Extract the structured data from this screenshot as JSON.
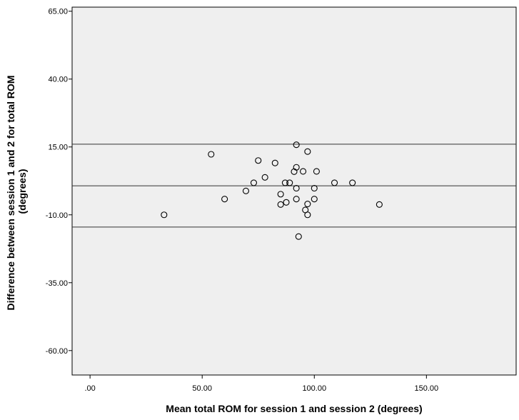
{
  "chart_data": {
    "type": "scatter",
    "title": "",
    "xlabel": "Mean total ROM for session 1 and session 2 (degrees)",
    "ylabel_lines": [
      "Difference between session 1 and 2 for total ROM",
      "(degrees)"
    ],
    "xlim": [
      -8,
      190
    ],
    "ylim": [
      -69,
      66.5
    ],
    "x_ticks": [
      {
        "value": 0,
        "label": ".00"
      },
      {
        "value": 50,
        "label": "50.00"
      },
      {
        "value": 100,
        "label": "100.00"
      },
      {
        "value": 150,
        "label": "150.00"
      }
    ],
    "y_ticks": [
      {
        "value": 65,
        "label": "65.00"
      },
      {
        "value": 40,
        "label": "40.00"
      },
      {
        "value": 15,
        "label": "15.00"
      },
      {
        "value": -10,
        "label": "-10.00"
      },
      {
        "value": -35,
        "label": "-35.00"
      },
      {
        "value": -60,
        "label": "-60.00"
      }
    ],
    "grid": false,
    "plot_background": "#efefef",
    "reference_lines": [
      16.0,
      0.7,
      -14.5
    ],
    "points": [
      {
        "x": 33,
        "y": -10.0
      },
      {
        "x": 54,
        "y": 12.3
      },
      {
        "x": 60,
        "y": -4.2
      },
      {
        "x": 69.5,
        "y": -1.2
      },
      {
        "x": 73,
        "y": 1.8
      },
      {
        "x": 75,
        "y": 10.0
      },
      {
        "x": 78,
        "y": 3.8
      },
      {
        "x": 82.5,
        "y": 9.1
      },
      {
        "x": 85,
        "y": -2.4
      },
      {
        "x": 85,
        "y": -6.2
      },
      {
        "x": 87,
        "y": 1.8
      },
      {
        "x": 87.5,
        "y": -5.4
      },
      {
        "x": 89,
        "y": 1.8
      },
      {
        "x": 91,
        "y": 5.9
      },
      {
        "x": 92,
        "y": 15.8
      },
      {
        "x": 92,
        "y": 7.5
      },
      {
        "x": 92,
        "y": -0.2
      },
      {
        "x": 92,
        "y": -4.2
      },
      {
        "x": 93,
        "y": -18.0
      },
      {
        "x": 95,
        "y": 6.0
      },
      {
        "x": 96,
        "y": -8.2
      },
      {
        "x": 97,
        "y": 13.3
      },
      {
        "x": 97,
        "y": -6.0
      },
      {
        "x": 97,
        "y": -10.0
      },
      {
        "x": 100,
        "y": -0.2
      },
      {
        "x": 100,
        "y": -4.2
      },
      {
        "x": 101,
        "y": 6.0
      },
      {
        "x": 109,
        "y": 1.8
      },
      {
        "x": 117,
        "y": 1.8
      },
      {
        "x": 129,
        "y": -6.2
      }
    ]
  }
}
